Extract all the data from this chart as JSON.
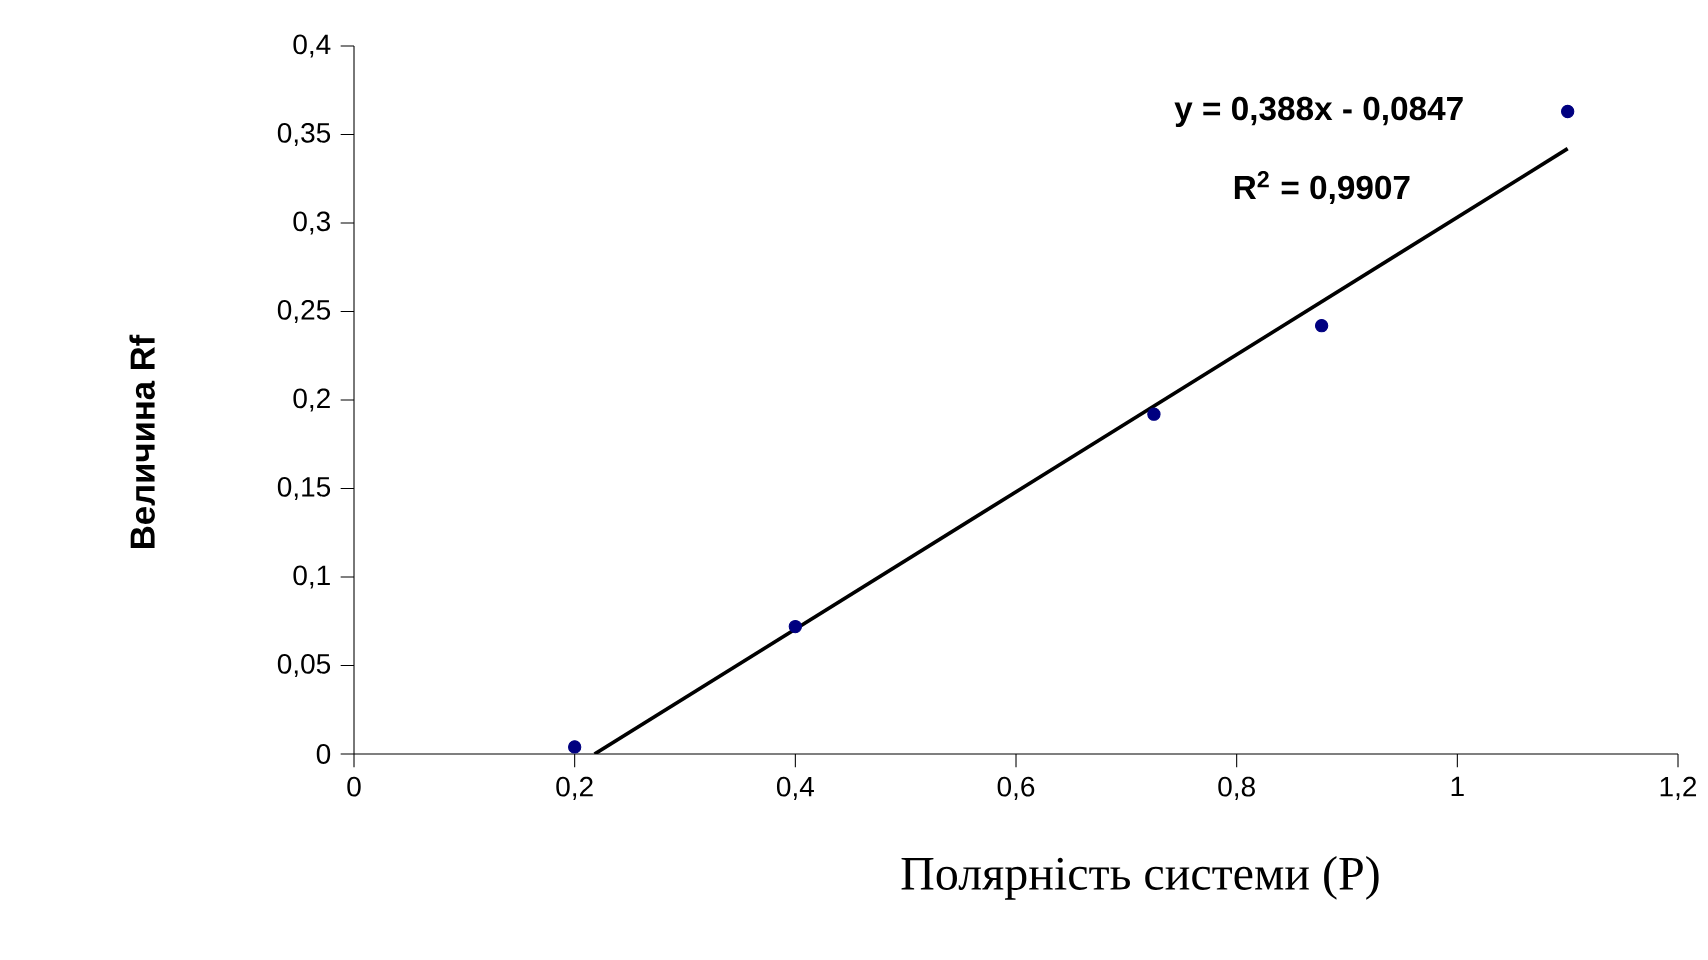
{
  "chart_data": {
    "type": "scatter",
    "xlabel": "Полярність системи (P)",
    "ylabel": "Величина Rf",
    "annotations": [
      "y = 0,388x - 0,0847",
      "R$^{2}$ = 0,9907"
    ],
    "series": [
      {
        "color": "#000080",
        "marker": "circle",
        "x": [
          0.2,
          0.4,
          0.725,
          0.877,
          1.1
        ],
        "values": [
          0.004,
          0.072,
          0.192,
          0.242,
          0.363
        ]
      },
      {
        "type": "line",
        "color": "#000000",
        "marker": "none",
        "line_style": "solid",
        "x": [
          0.218,
          1.1
        ],
        "values": [
          0,
          0.342
        ]
      }
    ],
    "xlim": [
      0,
      1.2
    ],
    "ylim": [
      0,
      0.4
    ],
    "xticks": [
      0,
      {
        "value": 0.2,
        "label": "0,2"
      },
      {
        "value": 0.4,
        "label": "0,4"
      },
      {
        "value": 0.6,
        "label": "0,6"
      },
      {
        "value": 0.8,
        "label": "0,8"
      },
      1,
      {
        "value": 1.2,
        "label": "1,2"
      }
    ],
    "yticks": [
      0,
      {
        "value": 0.05,
        "label": "0,05"
      },
      {
        "value": 0.1,
        "label": "0,1"
      },
      {
        "value": 0.15,
        "label": "0,15"
      },
      {
        "value": 0.2,
        "label": "0,2"
      },
      {
        "value": 0.25,
        "label": "0,25"
      },
      {
        "value": 0.3,
        "label": "0,3"
      },
      {
        "value": 0.35,
        "label": "0,35"
      },
      {
        "value": 0.4,
        "label": "0,4"
      }
    ],
    "grid": false
  }
}
